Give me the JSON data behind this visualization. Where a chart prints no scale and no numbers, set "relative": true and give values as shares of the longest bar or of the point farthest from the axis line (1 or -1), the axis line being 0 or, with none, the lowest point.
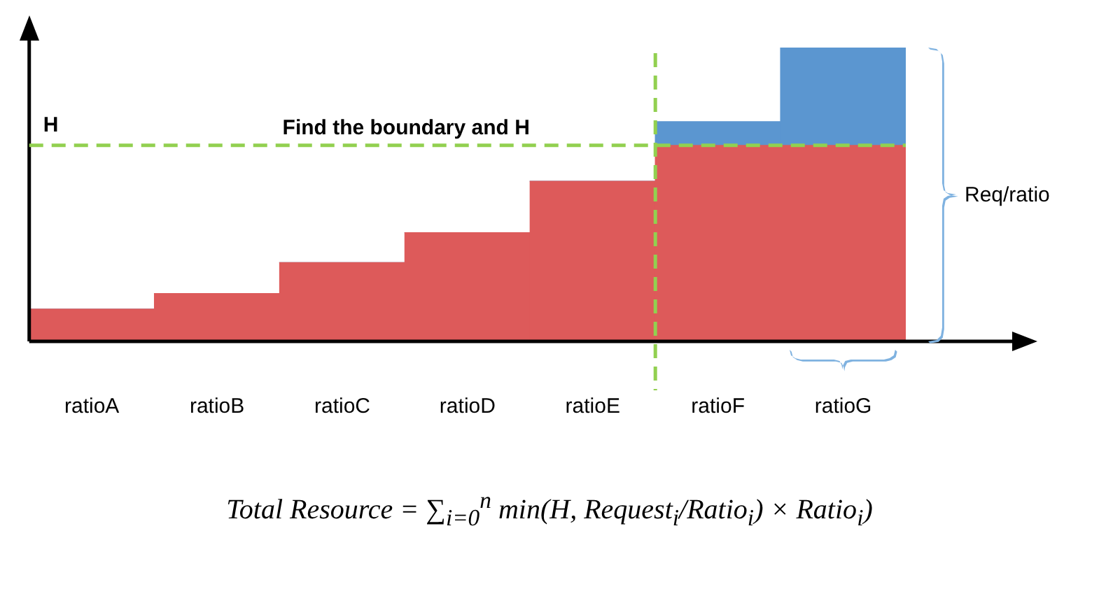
{
  "chart_data": {
    "type": "bar",
    "relative": true,
    "stacked": true,
    "tick_labels": "x",
    "grid": false,
    "categories": [
      "ratioA",
      "ratioB",
      "ratioC",
      "ratioD",
      "ratioE",
      "ratioF",
      "ratioG"
    ],
    "series": [
      {
        "color": "#dd5a5a",
        "values": [
          0.11,
          0.163,
          0.268,
          0.37,
          0.545,
          0.667,
          0.667
        ]
      },
      {
        "color": "#5b96d0",
        "values": [
          0,
          0,
          0,
          0,
          0,
          0.081,
          0.333
        ]
      }
    ],
    "ref_lines": [
      {
        "axis": "y",
        "value": 0.667,
        "label": "H",
        "color": "#92d050",
        "line_style": "dashed"
      },
      {
        "axis": "x",
        "value": "ratioF",
        "color": "#92d050",
        "line_style": "dashed"
      }
    ],
    "annotations": [
      "Find the boundary and H",
      "Req/ratio",
      "Total Resource = ∑$_{i=0}$$^{n}$ min(H, Request$_{i}$/Ratio$_{i}$) × Ratio$_{i}$)"
    ]
  }
}
